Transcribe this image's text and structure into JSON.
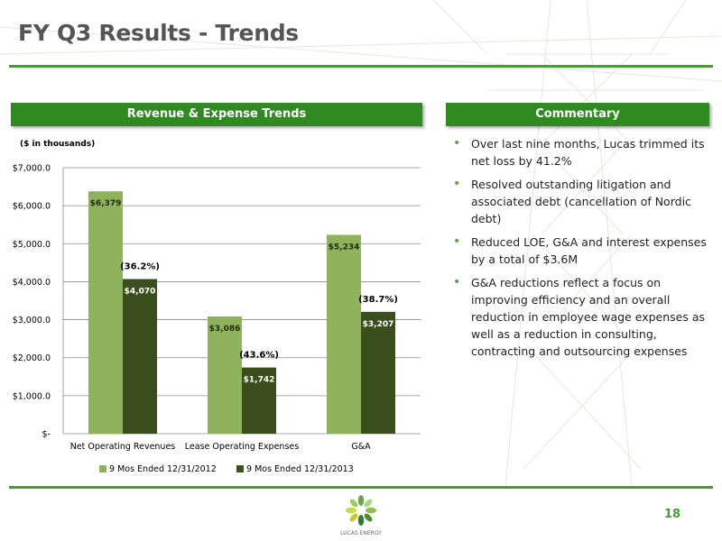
{
  "slide": {
    "title": "FY Q3 Results - Trends",
    "page_number": "18",
    "logo_text": "LUCAS ENERGY",
    "colors": {
      "accent": "#2f8a1f",
      "series1": "#8fb35c",
      "series2": "#3b4f1e"
    }
  },
  "left_panel": {
    "header": "Revenue & Expense Trends",
    "note": "($ in thousands)"
  },
  "right_panel": {
    "header": "Commentary",
    "bullets": [
      "Over last nine months, Lucas trimmed its net loss by 41.2%",
      "Resolved outstanding litigation and associated debt (cancellation of Nordic debt)",
      "Reduced LOE, G&A and interest expenses by a total of $3.6M",
      "G&A reductions reflect a focus on improving efficiency and an overall reduction in employee wage expenses as well as a reduction in consulting, contracting and outsourcing expenses"
    ]
  },
  "chart_data": {
    "type": "bar",
    "categories": [
      "Net Operating Revenues",
      "Lease Operating Expenses",
      "G&A"
    ],
    "series": [
      {
        "name": "9 Mos Ended 12/31/2012",
        "values": [
          6379,
          3086,
          5234
        ],
        "labels": [
          "$6,379",
          "$3,086",
          "$5,234"
        ],
        "color": "#8fb35c"
      },
      {
        "name": "9 Mos Ended 12/31/2013",
        "values": [
          4070,
          1742,
          3207
        ],
        "labels": [
          "$4,070",
          "$1,742",
          "$3,207"
        ],
        "color": "#3b4f1e"
      }
    ],
    "annotations": [
      "(36.2%)",
      "(43.6%)",
      "(38.7%)"
    ],
    "ylim": [
      0,
      7000
    ],
    "yticks": [
      0,
      1000,
      2000,
      3000,
      4000,
      5000,
      6000,
      7000
    ],
    "ytick_labels": [
      "$-",
      "$1,000.0",
      "$2,000.0",
      "$3,000.0",
      "$4,000.0",
      "$5,000.0",
      "$6,000.0",
      "$7,000.0"
    ],
    "grid": true,
    "legend_position": "bottom"
  }
}
